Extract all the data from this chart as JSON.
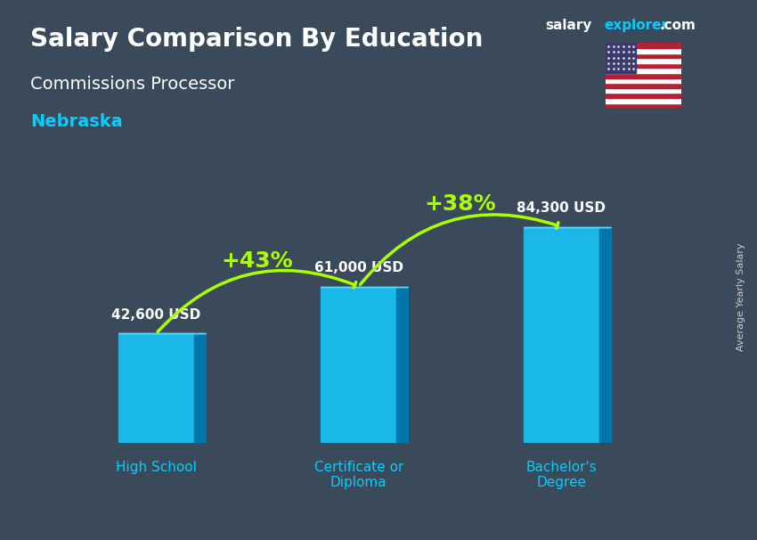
{
  "title_main": "Salary Comparison By Education",
  "subtitle": "Commissions Processor",
  "location": "Nebraska",
  "ylabel": "Average Yearly Salary",
  "categories": [
    "High School",
    "Certificate or\nDiploma",
    "Bachelor's\nDegree"
  ],
  "values": [
    42600,
    61000,
    84300
  ],
  "value_labels": [
    "42,600 USD",
    "61,000 USD",
    "84,300 USD"
  ],
  "pct_labels": [
    "+43%",
    "+38%"
  ],
  "bar_color_top": "#00cfff",
  "bar_color_mid": "#0090cc",
  "bar_color_dark": "#006699",
  "bar_color_side": "#005580",
  "background_color": "#3a4a5a",
  "title_color": "#ffffff",
  "subtitle_color": "#ffffff",
  "location_color": "#00cfff",
  "value_label_color": "#ffffff",
  "pct_color": "#aaff00",
  "arrow_color": "#aaff00",
  "axis_label_color": "#cccccc",
  "tick_label_color": "#00cfff",
  "brand_salary": "salary",
  "brand_explorer": "explorer",
  "brand_com": ".com",
  "watermark_color": "#cccccc",
  "figsize": [
    8.5,
    6.06
  ],
  "dpi": 100
}
